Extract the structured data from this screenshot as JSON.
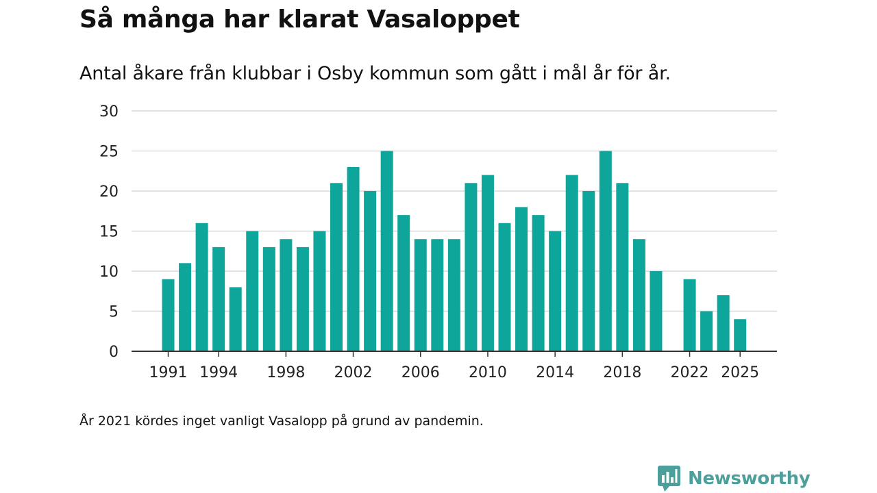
{
  "title": "Så många har klarat Vasaloppet",
  "subtitle": "Antal åkare från klubbar i Osby kommun som gått i mål år för år.",
  "footnote": "År 2021 kördes inget vanligt Vasalopp på grund av pandemin.",
  "brand": {
    "name": "Newsworthy",
    "color": "#4c9f9a",
    "icon": "newsworthy-logo-icon"
  },
  "bar_color": "#0ea59a",
  "chart_data": {
    "type": "bar",
    "title": "Så många har klarat Vasaloppet",
    "xlabel": "",
    "ylabel": "",
    "ylim": [
      0,
      30
    ],
    "yticks": [
      0,
      5,
      10,
      15,
      20,
      25,
      30
    ],
    "xticks": [
      1991,
      1994,
      1998,
      2002,
      2006,
      2010,
      2014,
      2018,
      2022,
      2025
    ],
    "grid": true,
    "categories": [
      1991,
      1992,
      1993,
      1994,
      1995,
      1996,
      1997,
      1998,
      1999,
      2000,
      2001,
      2002,
      2003,
      2004,
      2005,
      2006,
      2007,
      2008,
      2009,
      2010,
      2011,
      2012,
      2013,
      2014,
      2015,
      2016,
      2017,
      2018,
      2019,
      2020,
      2021,
      2022,
      2023,
      2024,
      2025
    ],
    "values": [
      9,
      11,
      16,
      13,
      8,
      15,
      13,
      14,
      13,
      15,
      21,
      23,
      20,
      25,
      17,
      14,
      14,
      14,
      21,
      22,
      16,
      18,
      17,
      15,
      22,
      20,
      25,
      21,
      14,
      10,
      null,
      9,
      5,
      7,
      4
    ]
  }
}
